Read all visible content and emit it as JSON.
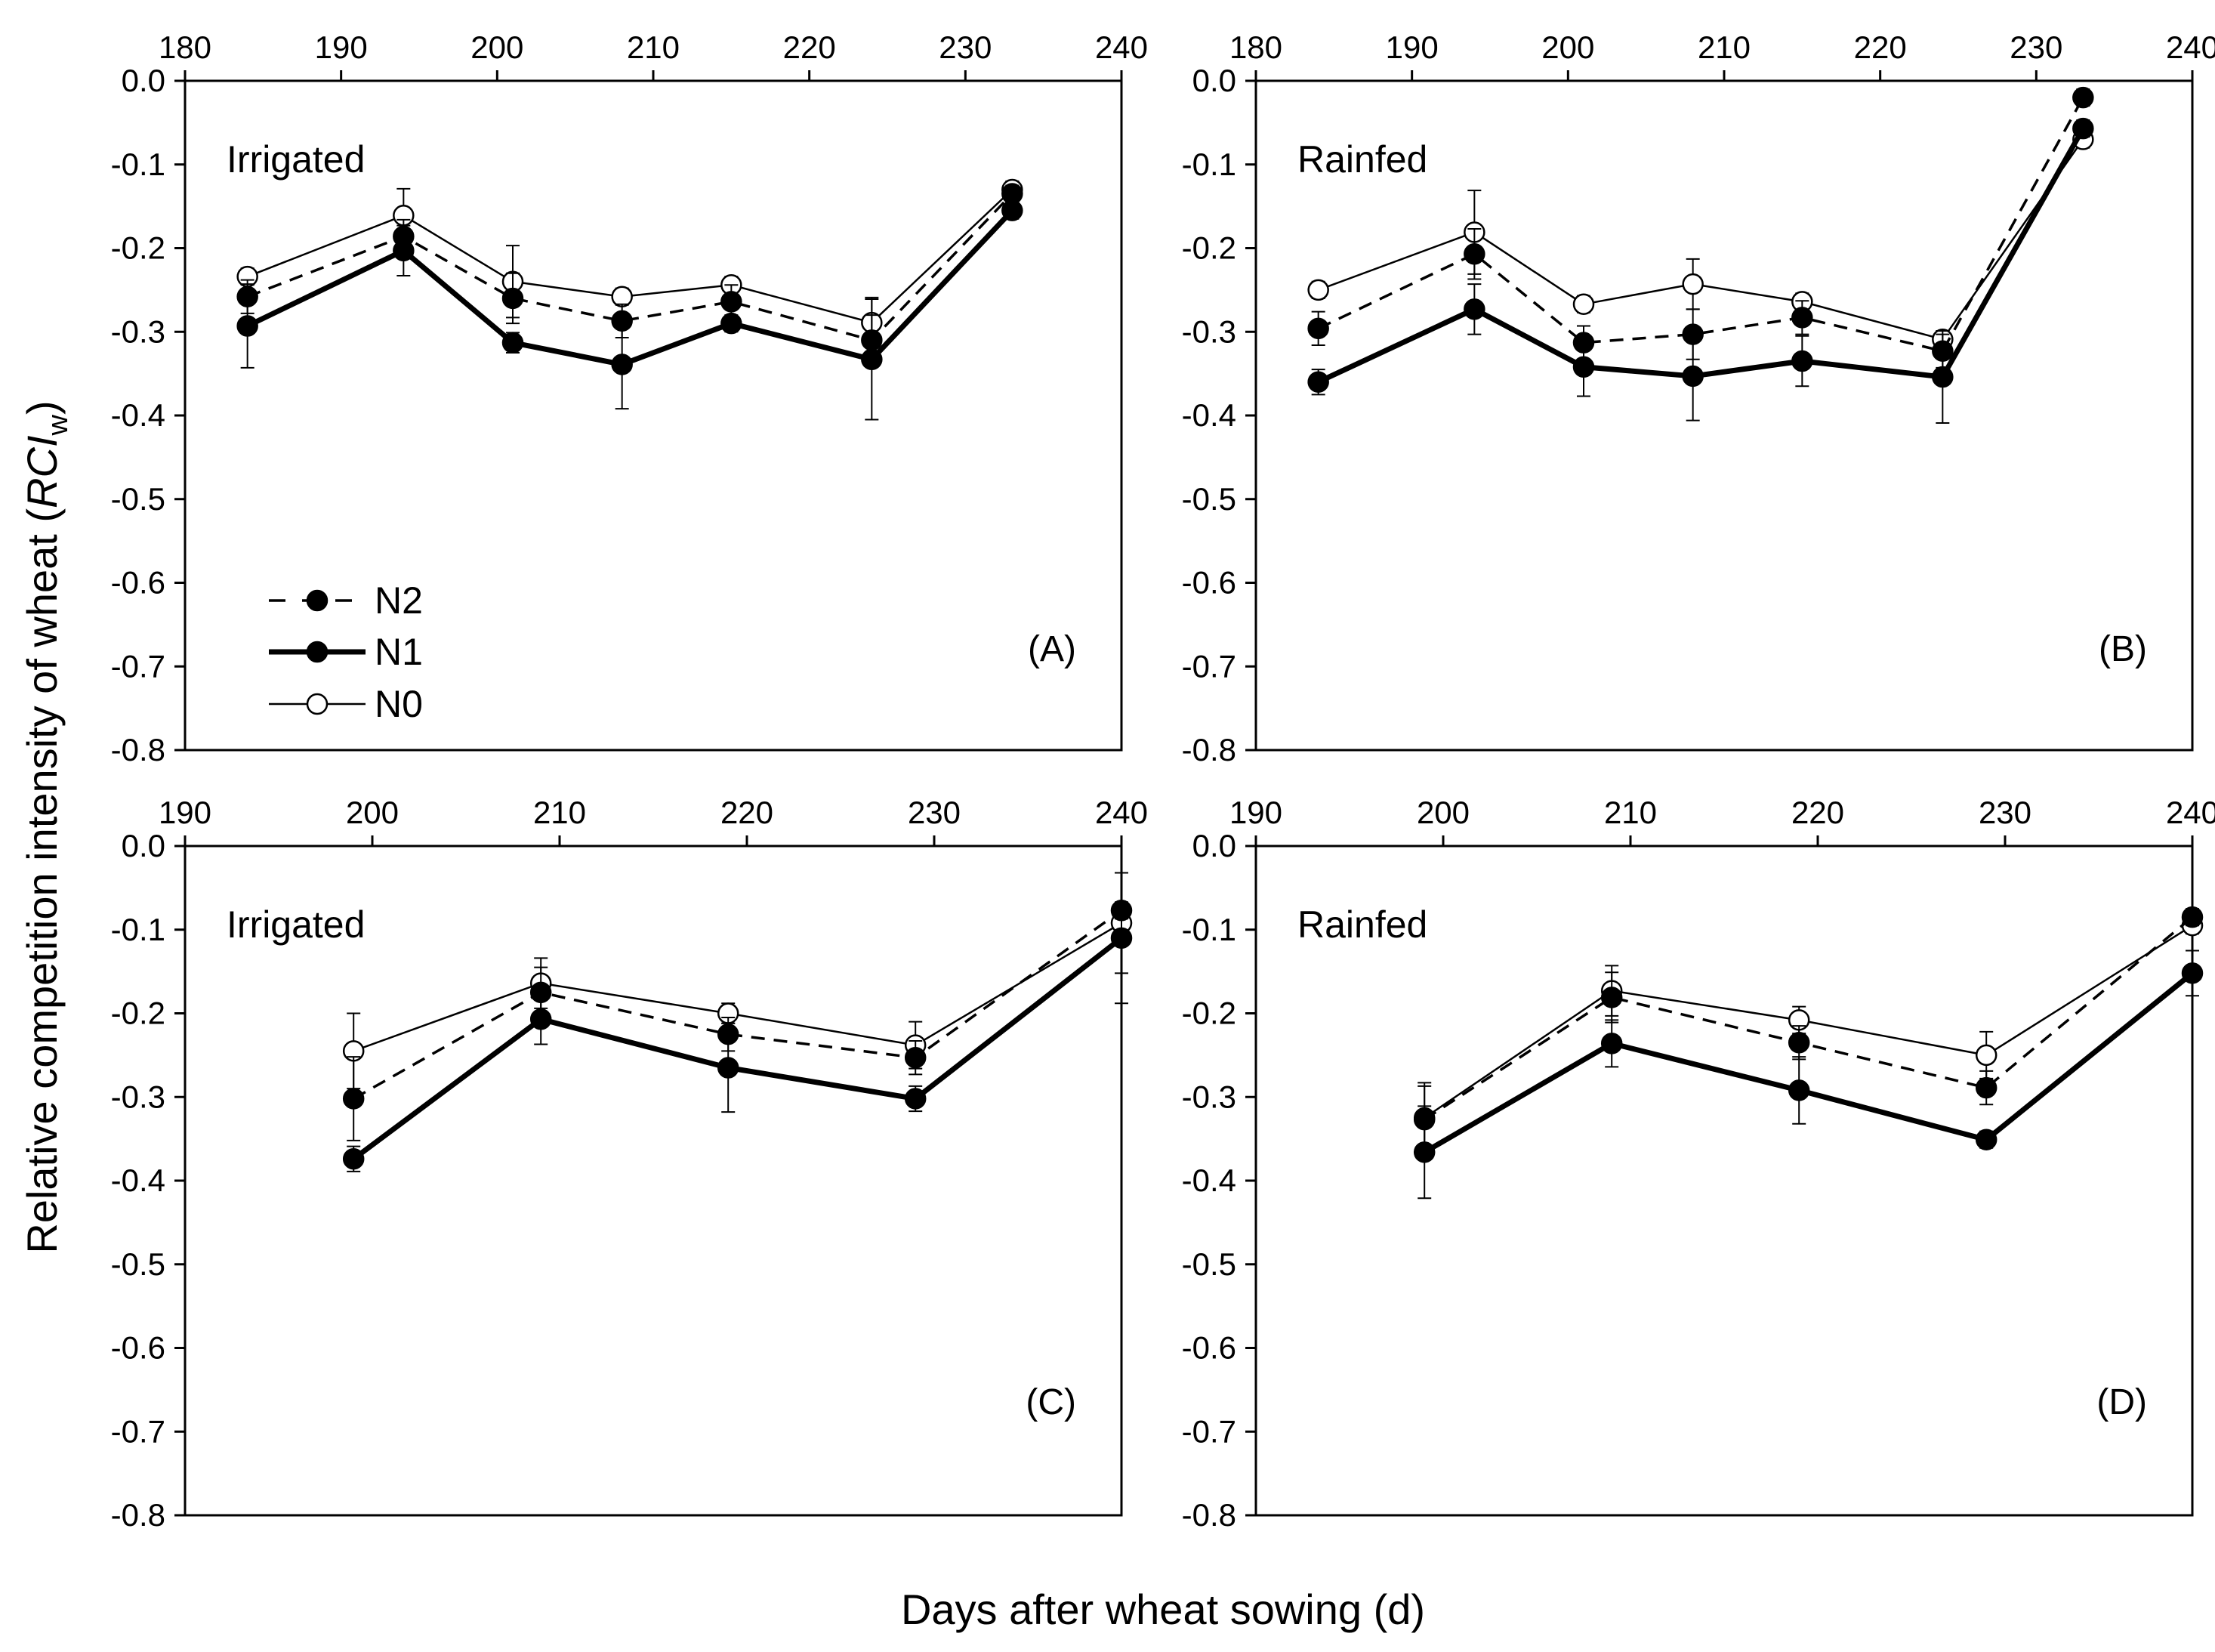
{
  "figure": {
    "ylabel_main": "Relative competition intensity of wheat (",
    "ylabel_italic": "RCI",
    "ylabel_sub": "w",
    "ylabel_close": ")",
    "xlabel": "Days after wheat sowing (d)"
  },
  "legend": {
    "position": "lower-left of panel A",
    "entries": [
      {
        "name": "N2",
        "style": "dashed",
        "marker": "filled-circle"
      },
      {
        "name": "N1",
        "style": "thick-solid",
        "marker": "filled-circle"
      },
      {
        "name": "N0",
        "style": "thin-solid",
        "marker": "open-circle"
      }
    ]
  },
  "colors": {
    "line": "#000000",
    "background": "#ffffff",
    "open_marker_fill": "#ffffff"
  },
  "chart_data": [
    {
      "type": "line",
      "panel_label": "(A)",
      "annotation": "Irrigated",
      "xlim": [
        180,
        240
      ],
      "ylim": [
        -0.8,
        0.0
      ],
      "xticks": [
        "180",
        "190",
        "200",
        "210",
        "220",
        "230",
        "240"
      ],
      "yticks": [
        "0.0",
        "-0.1",
        "-0.2",
        "-0.3",
        "-0.4",
        "-0.5",
        "-0.6",
        "-0.7",
        "-0.8"
      ],
      "x_axis_position": "top",
      "grid": false,
      "x": [
        184,
        194,
        201,
        208,
        215,
        224,
        233
      ],
      "series": [
        {
          "name": "N2",
          "values": [
            -0.258,
            -0.186,
            -0.26,
            -0.287,
            -0.264,
            -0.31,
            -0.135
          ],
          "errors": [
            0.02,
            0.02,
            0.03,
            0.02,
            0.02,
            0.03,
            0.01
          ]
        },
        {
          "name": "N1",
          "values": [
            -0.293,
            -0.203,
            -0.313,
            -0.339,
            -0.29,
            -0.333,
            -0.155
          ],
          "errors": [
            0.05,
            0.03,
            0.012,
            0.053,
            0.01,
            0.072,
            0.01
          ]
        },
        {
          "name": "N0",
          "values": [
            -0.234,
            -0.161,
            -0.24,
            -0.258,
            -0.244,
            -0.289,
            -0.13
          ],
          "errors": [
            0.01,
            0.032,
            0.043,
            0.01,
            0.01,
            0.03,
            0.01
          ]
        }
      ]
    },
    {
      "type": "line",
      "panel_label": "(B)",
      "annotation": "Rainfed",
      "xlim": [
        180,
        240
      ],
      "ylim": [
        -0.8,
        0.0
      ],
      "xticks": [
        "180",
        "190",
        "200",
        "210",
        "220",
        "230",
        "240"
      ],
      "yticks": [
        "0.0",
        "-0.1",
        "-0.2",
        "-0.3",
        "-0.4",
        "-0.5",
        "-0.6",
        "-0.7",
        "-0.8"
      ],
      "x_axis_position": "top",
      "grid": false,
      "x": [
        184,
        194,
        201,
        208,
        215,
        224,
        233
      ],
      "series": [
        {
          "name": "N2",
          "values": [
            -0.296,
            -0.207,
            -0.313,
            -0.303,
            -0.283,
            -0.323,
            -0.02
          ],
          "errors": [
            0.02,
            0.03,
            0.02,
            0.03,
            0.02,
            0.02,
            0.01
          ]
        },
        {
          "name": "N1",
          "values": [
            -0.36,
            -0.273,
            -0.342,
            -0.353,
            -0.335,
            -0.354,
            -0.057
          ],
          "errors": [
            0.015,
            0.03,
            0.035,
            0.053,
            0.03,
            0.055,
            0.01
          ]
        },
        {
          "name": "N0",
          "values": [
            -0.25,
            -0.181,
            -0.267,
            -0.243,
            -0.264,
            -0.309,
            -0.07
          ],
          "errors": [
            0.01,
            0.05,
            0.01,
            0.03,
            0.01,
            0.01,
            0.01
          ]
        }
      ]
    },
    {
      "type": "line",
      "panel_label": "(C)",
      "annotation": "Irrigated",
      "xlim": [
        190,
        240
      ],
      "ylim": [
        -0.8,
        0.0
      ],
      "xticks": [
        "190",
        "200",
        "210",
        "220",
        "230",
        "240"
      ],
      "yticks": [
        "0.0",
        "-0.1",
        "-0.2",
        "-0.3",
        "-0.4",
        "-0.5",
        "-0.6",
        "-0.7",
        "-0.8"
      ],
      "x_axis_position": "top",
      "grid": false,
      "x": [
        199,
        209,
        219,
        229,
        240
      ],
      "series": [
        {
          "name": "N2",
          "values": [
            -0.302,
            -0.175,
            -0.225,
            -0.253,
            -0.077
          ],
          "errors": [
            0.05,
            0.03,
            0.02,
            0.02,
            0.01
          ]
        },
        {
          "name": "N1",
          "values": [
            -0.374,
            -0.207,
            -0.265,
            -0.302,
            -0.11
          ],
          "errors": [
            0.015,
            0.03,
            0.053,
            0.015,
            0.078
          ]
        },
        {
          "name": "N0",
          "values": [
            -0.245,
            -0.164,
            -0.2,
            -0.238,
            -0.092
          ],
          "errors": [
            0.045,
            0.03,
            0.012,
            0.028,
            0.06
          ]
        }
      ]
    },
    {
      "type": "line",
      "panel_label": "(D)",
      "annotation": "Rainfed",
      "xlim": [
        190,
        240
      ],
      "ylim": [
        -0.8,
        0.0
      ],
      "xticks": [
        "190",
        "200",
        "210",
        "220",
        "230",
        "240"
      ],
      "yticks": [
        "0.0",
        "-0.1",
        "-0.2",
        "-0.3",
        "-0.4",
        "-0.5",
        "-0.6",
        "-0.7",
        "-0.8"
      ],
      "x_axis_position": "top",
      "grid": false,
      "x": [
        199,
        209,
        219,
        229,
        240
      ],
      "series": [
        {
          "name": "N2",
          "values": [
            -0.327,
            -0.181,
            -0.235,
            -0.289,
            -0.085
          ],
          "errors": [
            0.04,
            0.03,
            0.02,
            0.02,
            0.01
          ]
        },
        {
          "name": "N1",
          "values": [
            -0.366,
            -0.236,
            -0.292,
            -0.351,
            -0.152
          ],
          "errors": [
            0.055,
            0.028,
            0.04,
            0.01,
            0.027
          ]
        },
        {
          "name": "N0",
          "values": [
            -0.325,
            -0.173,
            -0.208,
            -0.25,
            -0.095
          ],
          "errors": [
            0.042,
            0.03,
            0.016,
            0.028,
            0.01
          ]
        }
      ]
    }
  ]
}
